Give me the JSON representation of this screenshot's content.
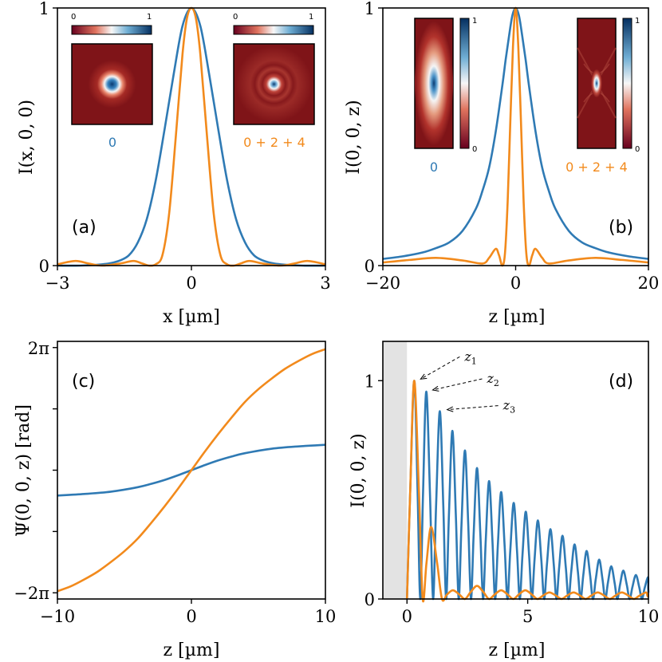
{
  "colors": {
    "blue": "#2f7ab4",
    "orange": "#f28a1c",
    "dark_red": "#7f1418",
    "shade": "#e3e3e3"
  },
  "chart_data": [
    {
      "id": "a",
      "type": "line",
      "panel_label": "(a)",
      "xlabel": "x [µm]",
      "ylabel": "I(x, 0, 0)",
      "xlim": [
        -3,
        3
      ],
      "ylim": [
        0,
        1
      ],
      "xticks": [
        {
          "v": -3,
          "t": "−3"
        },
        {
          "v": 0,
          "t": "0"
        },
        {
          "v": 3,
          "t": "3"
        }
      ],
      "yticks": [
        {
          "v": 0,
          "t": "0"
        },
        {
          "v": 1,
          "t": "1"
        }
      ],
      "series": [
        {
          "name": "0",
          "color": "blue",
          "x": [
            -3,
            -2.5,
            -2,
            -1.8,
            -1.6,
            -1.4,
            -1.2,
            -1.0,
            -0.8,
            -0.6,
            -0.4,
            -0.2,
            0,
            0.2,
            0.4,
            0.6,
            0.8,
            1.0,
            1.2,
            1.4,
            1.6,
            1.8,
            2,
            2.5,
            3
          ],
          "y": [
            0,
            0,
            0.005,
            0.01,
            0.02,
            0.04,
            0.09,
            0.18,
            0.33,
            0.53,
            0.74,
            0.93,
            1.0,
            0.93,
            0.74,
            0.53,
            0.33,
            0.18,
            0.09,
            0.04,
            0.02,
            0.01,
            0.005,
            0,
            0
          ]
        },
        {
          "name": "0 + 2 + 4",
          "color": "orange",
          "x": [
            -3,
            -2.6,
            -2.3,
            -2.0,
            -1.6,
            -1.3,
            -1.1,
            -0.95,
            -0.8,
            -0.65,
            -0.5,
            -0.35,
            -0.2,
            -0.1,
            0,
            0.1,
            0.2,
            0.35,
            0.5,
            0.65,
            0.8,
            0.95,
            1.1,
            1.3,
            1.6,
            2.0,
            2.3,
            2.6,
            3
          ],
          "y": [
            0.005,
            0.018,
            0.008,
            0.0,
            0.008,
            0.018,
            0.008,
            0.0,
            0.005,
            0.04,
            0.2,
            0.5,
            0.82,
            0.96,
            1.0,
            0.96,
            0.82,
            0.5,
            0.2,
            0.04,
            0.005,
            0.0,
            0.008,
            0.018,
            0.008,
            0.0,
            0.008,
            0.018,
            0.005
          ]
        }
      ],
      "insets": [
        {
          "caption": "0",
          "cb_min": "0",
          "cb_max": "1"
        },
        {
          "caption": "0 + 2 + 4",
          "cb_min": "0",
          "cb_max": "1"
        }
      ]
    },
    {
      "id": "b",
      "type": "line",
      "panel_label": "(b)",
      "xlabel": "z [µm]",
      "ylabel": "I(0, 0, z)",
      "xlim": [
        -20,
        20
      ],
      "ylim": [
        0,
        1
      ],
      "xticks": [
        {
          "v": -20,
          "t": "−20"
        },
        {
          "v": 0,
          "t": "0"
        },
        {
          "v": 20,
          "t": "20"
        }
      ],
      "yticks": [
        {
          "v": 0,
          "t": "0"
        },
        {
          "v": 1,
          "t": "1"
        }
      ],
      "series": [
        {
          "name": "0",
          "color": "blue",
          "x": [
            -20,
            -17,
            -14,
            -12,
            -10,
            -8,
            -6,
            -5,
            -4,
            -3,
            -2,
            -1.5,
            -1,
            -0.5,
            0,
            0.5,
            1,
            1.5,
            2,
            3,
            4,
            5,
            6,
            8,
            10,
            12,
            14,
            17,
            20
          ],
          "y": [
            0.026,
            0.036,
            0.051,
            0.068,
            0.09,
            0.135,
            0.22,
            0.29,
            0.38,
            0.52,
            0.7,
            0.8,
            0.89,
            0.97,
            1.0,
            0.97,
            0.89,
            0.8,
            0.7,
            0.52,
            0.38,
            0.29,
            0.22,
            0.135,
            0.09,
            0.068,
            0.051,
            0.036,
            0.026
          ]
        },
        {
          "name": "0 + 2 + 4",
          "color": "orange",
          "x": [
            -20,
            -16,
            -12,
            -8,
            -5,
            -4,
            -3,
            -2.5,
            -2,
            -1.6,
            -1.2,
            -0.8,
            -0.4,
            0,
            0.4,
            0.8,
            1.2,
            1.6,
            2,
            2.5,
            3,
            4,
            5,
            8,
            12,
            16,
            20
          ],
          "y": [
            0.012,
            0.022,
            0.03,
            0.02,
            0.008,
            0.03,
            0.065,
            0.04,
            0.0,
            0.05,
            0.25,
            0.56,
            0.85,
            1.0,
            0.85,
            0.56,
            0.25,
            0.05,
            0.0,
            0.04,
            0.065,
            0.03,
            0.008,
            0.02,
            0.03,
            0.022,
            0.012
          ]
        }
      ],
      "insets": [
        {
          "caption": "0",
          "cb_min": "0",
          "cb_max": "1"
        },
        {
          "caption": "0 + 2 + 4",
          "cb_min": "0",
          "cb_max": "1"
        }
      ]
    },
    {
      "id": "c",
      "type": "line",
      "panel_label": "(c)",
      "xlabel": "z [µm]",
      "ylabel": "Ψ(0, 0, z) [rad]",
      "xlim": [
        -10,
        10
      ],
      "ylim": [
        -6.6,
        6.6
      ],
      "xticks": [
        {
          "v": -10,
          "t": "−10"
        },
        {
          "v": 0,
          "t": "0"
        },
        {
          "v": 10,
          "t": "10"
        }
      ],
      "yticks": [
        {
          "v": -6.2832,
          "t": "−2π"
        },
        {
          "v": -3.1416,
          "t": ""
        },
        {
          "v": 0,
          "t": ""
        },
        {
          "v": 3.1416,
          "t": ""
        },
        {
          "v": 6.2832,
          "t": "2π"
        }
      ],
      "series": [
        {
          "name": "0",
          "color": "blue",
          "x": [
            -10,
            -8,
            -6,
            -4,
            -3,
            -2,
            -1,
            0,
            1,
            2,
            3,
            4,
            6,
            8,
            10
          ],
          "y": [
            -1.3,
            -1.22,
            -1.1,
            -0.87,
            -0.7,
            -0.5,
            -0.26,
            0,
            0.26,
            0.5,
            0.7,
            0.87,
            1.1,
            1.22,
            1.3
          ]
        },
        {
          "name": "0 + 2 + 4",
          "color": "orange",
          "x": [
            -10,
            -9,
            -8,
            -7,
            -6,
            -5,
            -4,
            -3,
            -2,
            -1,
            0,
            1,
            2,
            3,
            4,
            5,
            6,
            7,
            8,
            9,
            10
          ],
          "y": [
            -6.2,
            -5.95,
            -5.6,
            -5.2,
            -4.7,
            -4.15,
            -3.5,
            -2.7,
            -1.85,
            -0.95,
            0,
            0.95,
            1.85,
            2.7,
            3.5,
            4.15,
            4.7,
            5.2,
            5.6,
            5.95,
            6.2
          ]
        }
      ]
    },
    {
      "id": "d",
      "type": "line",
      "panel_label": "(d)",
      "xlabel": "z [µm]",
      "ylabel": "I(0, 0, z)",
      "xlim": [
        -1,
        10
      ],
      "ylim": [
        0,
        1.18
      ],
      "xticks": [
        {
          "v": 0,
          "t": "0"
        },
        {
          "v": 5,
          "t": "5"
        },
        {
          "v": 10,
          "t": "10"
        }
      ],
      "yticks": [
        {
          "v": 0,
          "t": "0"
        },
        {
          "v": 1,
          "t": "1"
        }
      ],
      "shaded_region": [
        -1,
        0
      ],
      "annotations": [
        {
          "label": "z",
          "sub": "1",
          "x": 0.3,
          "y": 1.0
        },
        {
          "label": "z",
          "sub": "2",
          "x": 0.8,
          "y": 0.95
        },
        {
          "label": "z",
          "sub": "3",
          "x": 1.4,
          "y": 0.86
        }
      ],
      "series": [
        {
          "name": "0",
          "color": "blue",
          "peaks": [
            0.3,
            0.8,
            1.36,
            1.88,
            2.4,
            2.9,
            3.4,
            3.9,
            4.42,
            4.92,
            5.42,
            5.94,
            6.44,
            6.94,
            7.44,
            7.96,
            8.46,
            8.96,
            9.48,
            9.98
          ],
          "peak_values": [
            1.0,
            0.95,
            0.86,
            0.77,
            0.68,
            0.6,
            0.54,
            0.49,
            0.44,
            0.4,
            0.36,
            0.32,
            0.29,
            0.25,
            0.22,
            0.18,
            0.15,
            0.13,
            0.11,
            0.1
          ]
        },
        {
          "name": "0 + 2 + 4",
          "color": "orange",
          "peaks": [
            0.3,
            1.0,
            1.9,
            2.9,
            3.9,
            4.9,
            5.9,
            6.9,
            7.9,
            8.9,
            9.9
          ],
          "peak_values": [
            1.0,
            0.33,
            0.04,
            0.06,
            0.04,
            0.04,
            0.03,
            0.03,
            0.03,
            0.03,
            0.03
          ]
        }
      ]
    }
  ]
}
